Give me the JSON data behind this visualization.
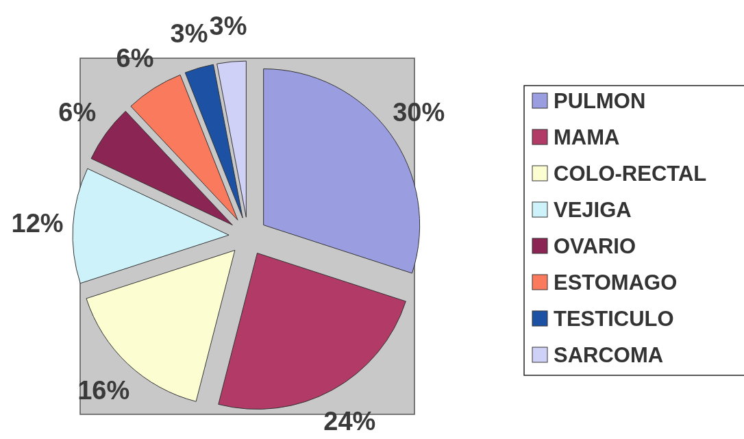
{
  "chart_data": {
    "type": "pie",
    "categories": [
      "PULMON",
      "MAMA",
      "COLO-RECTAL",
      "VEJIGA",
      "OVARIO",
      "ESTOMAGO",
      "TESTICULO",
      "SARCOMA"
    ],
    "values": [
      30,
      24,
      16,
      12,
      6,
      6,
      3,
      3
    ],
    "value_labels": [
      "30%",
      "24%",
      "16%",
      "12%",
      "6%",
      "6%",
      "3%",
      "3%"
    ],
    "colors": [
      "#9a9ee0",
      "#b13a66",
      "#fdfdd2",
      "#cdf2fa",
      "#8b2553",
      "#fa7a5e",
      "#1c51a3",
      "#d0d1f6"
    ],
    "legend": "right"
  }
}
